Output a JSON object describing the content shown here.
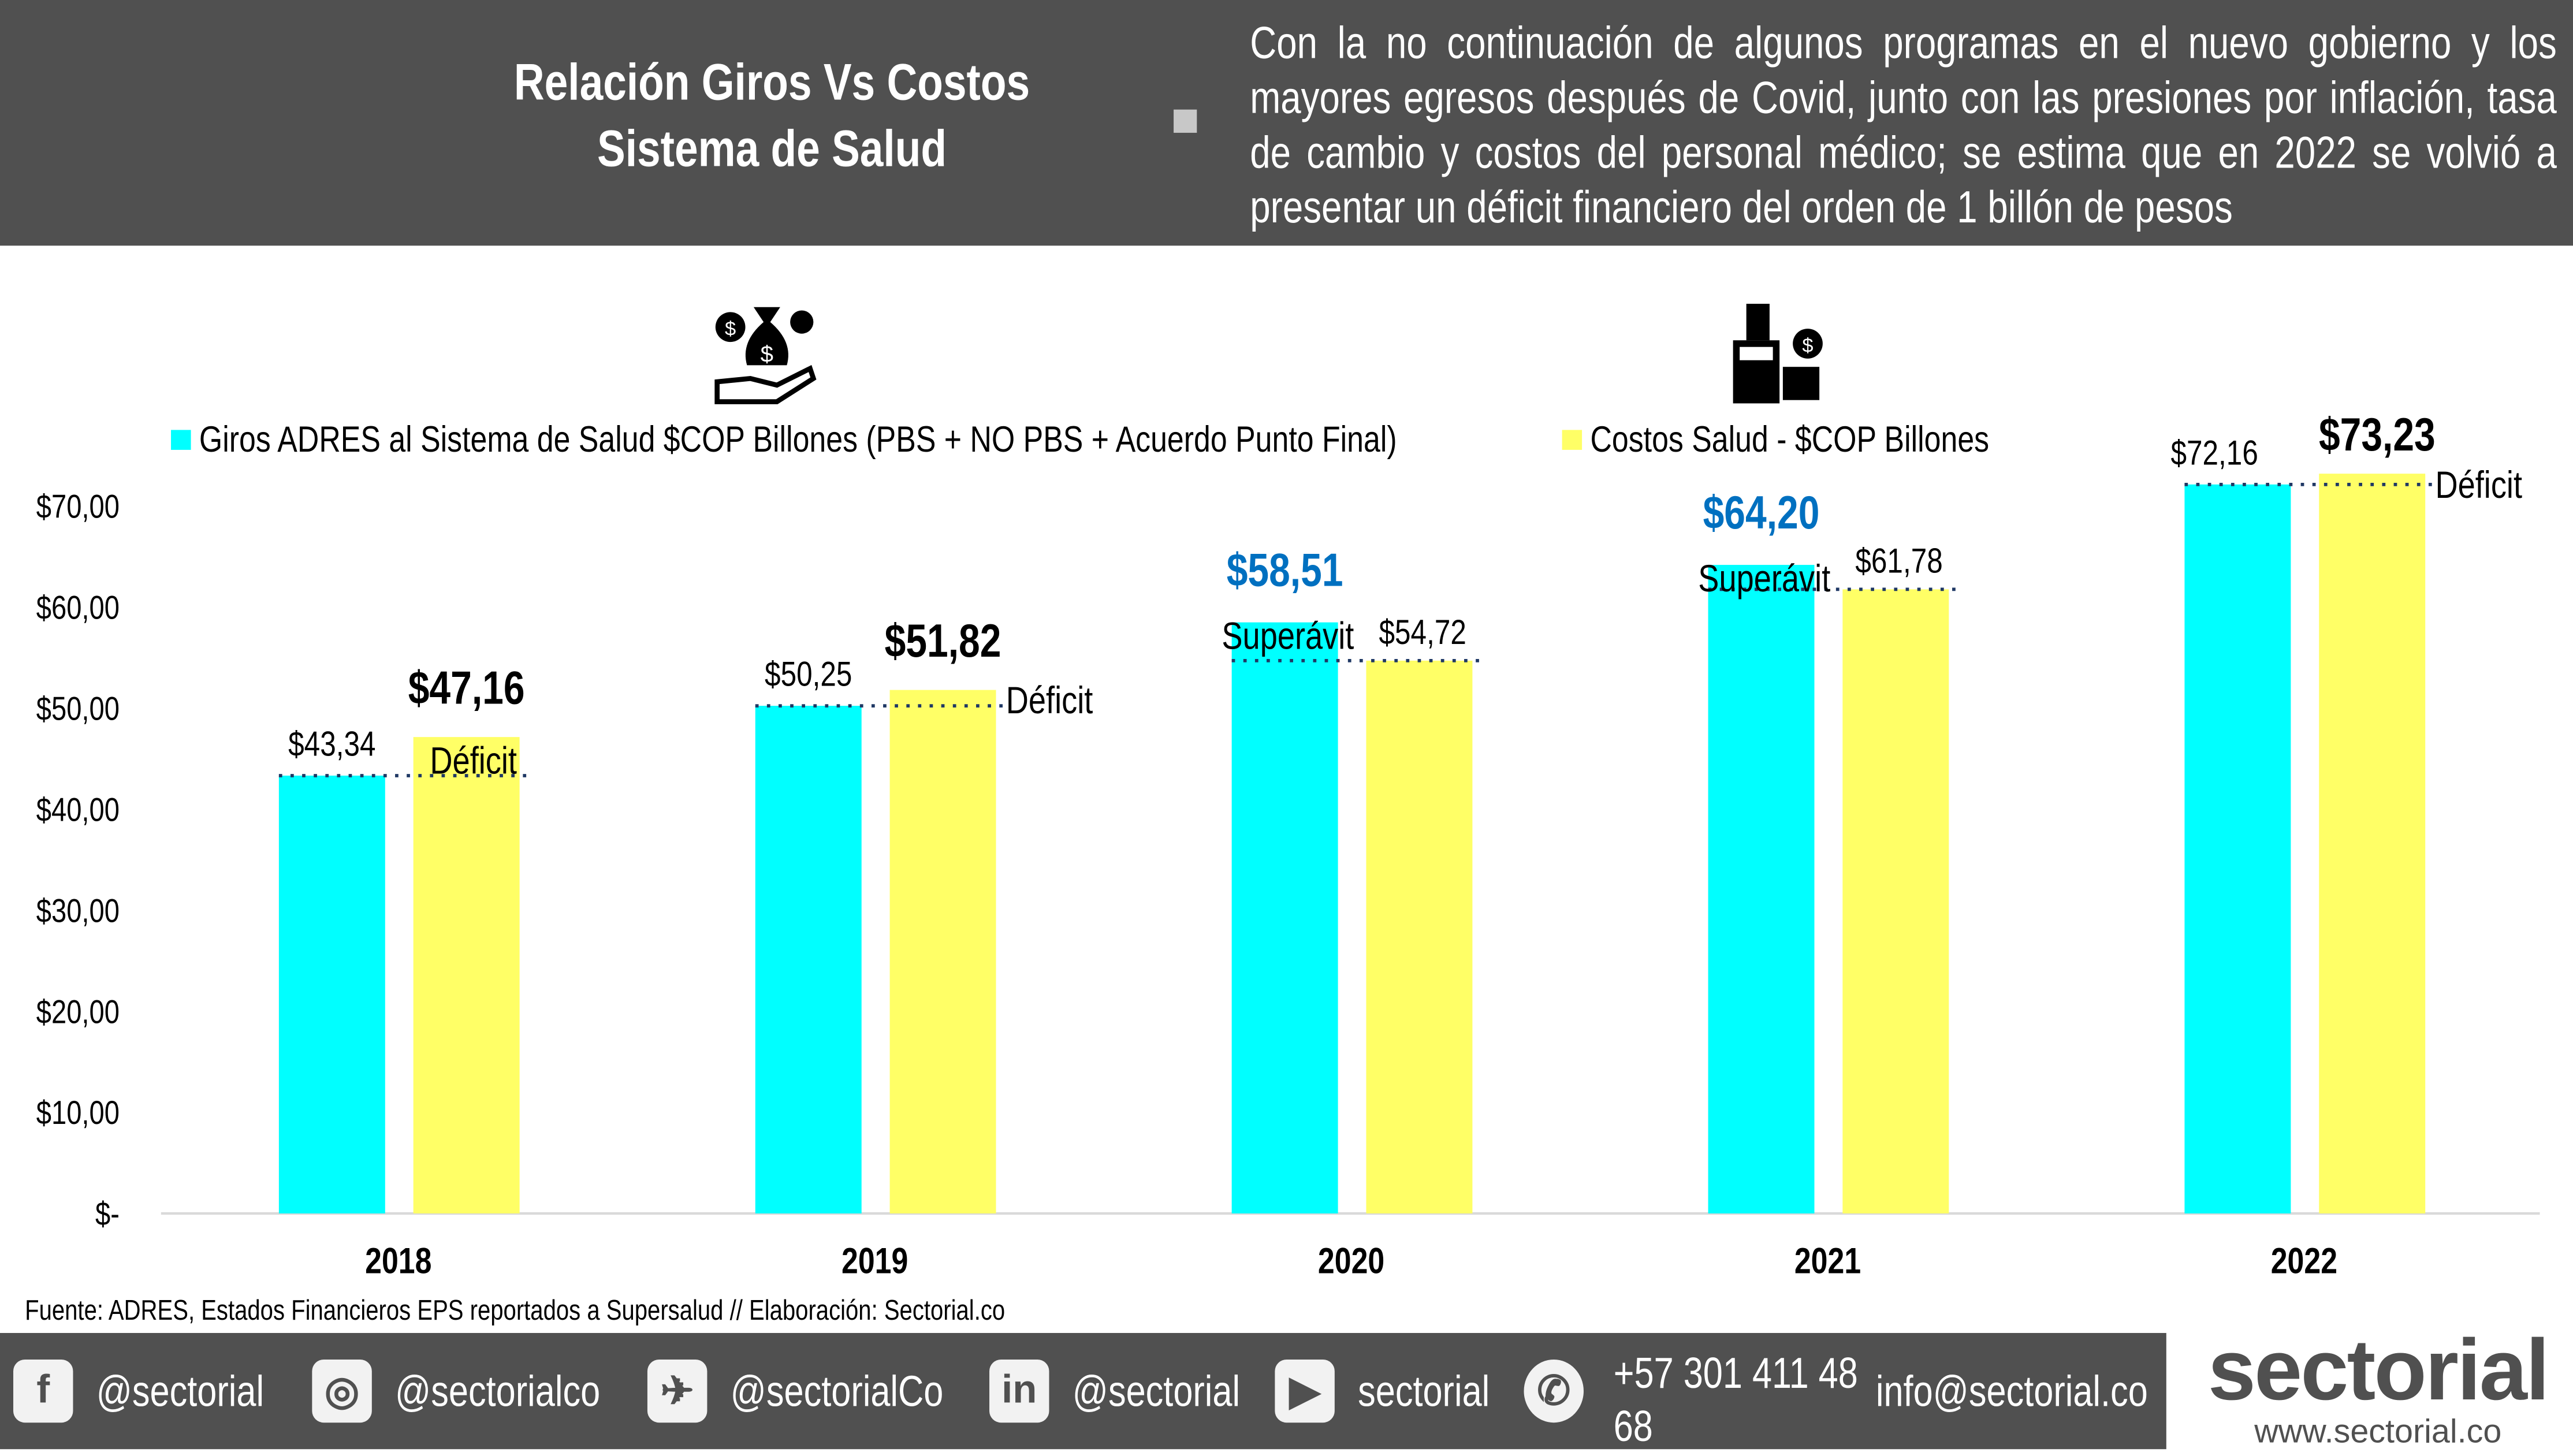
{
  "header": {
    "title": "Relación Giros Vs Costos Sistema de Salud",
    "summary": "Con la no continuación de algunos programas en el nuevo gobierno y los mayores egresos después de Covid, junto con las presiones por inflación, tasa de cambio y costos del personal médico; se estima que en 2022 se volvió a presentar un déficit financiero del orden de 1 billón de pesos"
  },
  "chart_data": {
    "type": "bar",
    "categories": [
      "2018",
      "2019",
      "2020",
      "2021",
      "2022"
    ],
    "series": [
      {
        "name": "Giros ADRES al Sistema de Salud $COP Billones (PBS + NO PBS + Acuerdo Punto Final)",
        "color": "#00FFFF",
        "values": [
          43.34,
          50.25,
          58.51,
          64.2,
          72.16
        ],
        "labels": [
          "$43,34",
          "$50,25",
          "$58,51",
          "$64,20",
          "$72,16"
        ]
      },
      {
        "name": "Costos Salud - $COP Billones",
        "color": "#FFFF66",
        "values": [
          47.16,
          51.82,
          54.72,
          61.78,
          73.23
        ],
        "labels": [
          "$47,16",
          "$51,82",
          "$54,72",
          "$61,78",
          "$73,23"
        ]
      }
    ],
    "annotations": [
      "Déficit",
      "Déficit",
      "Superávit",
      "Superávit",
      "Déficit"
    ],
    "highlight_series": [
      1,
      1,
      0,
      0,
      1
    ],
    "yticks": [
      "$-",
      "$10,00",
      "$20,00",
      "$30,00",
      "$40,00",
      "$50,00",
      "$60,00",
      "$70,00"
    ],
    "ylim": [
      0,
      70
    ],
    "legend": "top",
    "grid": false,
    "highlight_color": "#0070C0"
  },
  "source": "Fuente: ADRES, Estados Financieros EPS reportados a Supersalud  // Elaboración: Sectorial.co",
  "footer": {
    "social": [
      {
        "icon": "facebook",
        "label": "@sectorial"
      },
      {
        "icon": "instagram",
        "label": "@sectorialco"
      },
      {
        "icon": "twitter",
        "label": "@sectorialCo"
      },
      {
        "icon": "linkedin",
        "label": "@sectorial"
      },
      {
        "icon": "youtube",
        "label": "sectorial"
      },
      {
        "icon": "whatsapp",
        "label": ""
      }
    ],
    "phone_line1": "+57 301 411 48",
    "phone_line2": "68",
    "email": "info@sectorial.co",
    "logo_text": "sectorial",
    "logo_url": "www.sectorial.co"
  }
}
